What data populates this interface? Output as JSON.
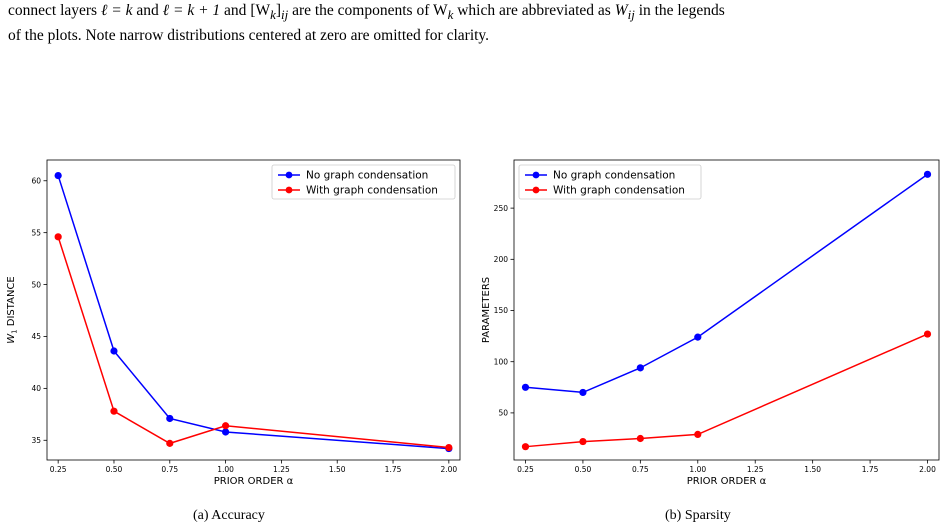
{
  "caption": {
    "line1_part1": "connect layers ",
    "line1_math1": "ℓ = k",
    "line1_part2": " and ",
    "line1_math2": "ℓ = k + 1",
    "line1_part3": " and ",
    "line1_math3": "[W",
    "line1_math3_sub": "k",
    "line1_math3_end": "]",
    "line1_math3_sub2": "ij",
    "line1_part4": " are the components of W",
    "line1_part4_sub": "k",
    "line1_part5": " which are abbreviated as ",
    "line1_math4": "W",
    "line1_math4_sub": "ij",
    "line1_part6": " in the legends",
    "line2": "of the plots. Note narrow distributions centered at zero are omitted for clarity."
  },
  "subcaptions": {
    "a": "(a) Accuracy",
    "b": "(b) Sparsity"
  },
  "colors": {
    "no_condensation": "#0000ff",
    "with_condensation": "#ff0000"
  },
  "chart_data": [
    {
      "type": "line",
      "xlabel": "PRIOR ORDER α",
      "ylabel_main": "W",
      "ylabel_sub": "1",
      "ylabel_rest": " DISTANCE",
      "x": [
        0.25,
        0.5,
        0.75,
        1.0,
        2.0
      ],
      "xlim": [
        0.2,
        2.05
      ],
      "ylim": [
        33.1,
        62.0
      ],
      "xticks": [
        0.25,
        0.5,
        0.75,
        1.0,
        1.25,
        1.5,
        1.75,
        2.0
      ],
      "xtick_labels": [
        "0.25",
        "0.50",
        "0.75",
        "1.00",
        "1.25",
        "1.50",
        "1.75",
        "2.00"
      ],
      "yticks": [
        35,
        40,
        45,
        50,
        55,
        60
      ],
      "ytick_labels": [
        "35",
        "40",
        "45",
        "50",
        "55",
        "60"
      ],
      "legend_position": "top-right",
      "series": [
        {
          "name": "No graph condensation",
          "values": [
            60.5,
            43.6,
            37.1,
            35.8,
            34.2
          ]
        },
        {
          "name": "With graph condensation",
          "values": [
            54.6,
            37.8,
            34.7,
            36.4,
            34.3
          ]
        }
      ]
    },
    {
      "type": "line",
      "xlabel": "PRIOR ORDER α",
      "ylabel_main": "PARAMETERS",
      "ylabel_sub": "",
      "ylabel_rest": "",
      "x": [
        0.25,
        0.5,
        0.75,
        1.0,
        2.0
      ],
      "xlim": [
        0.2,
        2.05
      ],
      "ylim": [
        4,
        297
      ],
      "xticks": [
        0.25,
        0.5,
        0.75,
        1.0,
        1.25,
        1.5,
        1.75,
        2.0
      ],
      "xtick_labels": [
        "0.25",
        "0.50",
        "0.75",
        "1.00",
        "1.25",
        "1.50",
        "1.75",
        "2.00"
      ],
      "yticks": [
        50,
        100,
        150,
        200,
        250
      ],
      "ytick_labels": [
        "50",
        "100",
        "150",
        "200",
        "250"
      ],
      "legend_position": "top-left",
      "series": [
        {
          "name": "No graph condensation",
          "values": [
            75,
            70,
            94,
            124,
            283
          ]
        },
        {
          "name": "With graph condensation",
          "values": [
            17,
            22,
            25,
            29,
            127
          ]
        }
      ]
    }
  ]
}
